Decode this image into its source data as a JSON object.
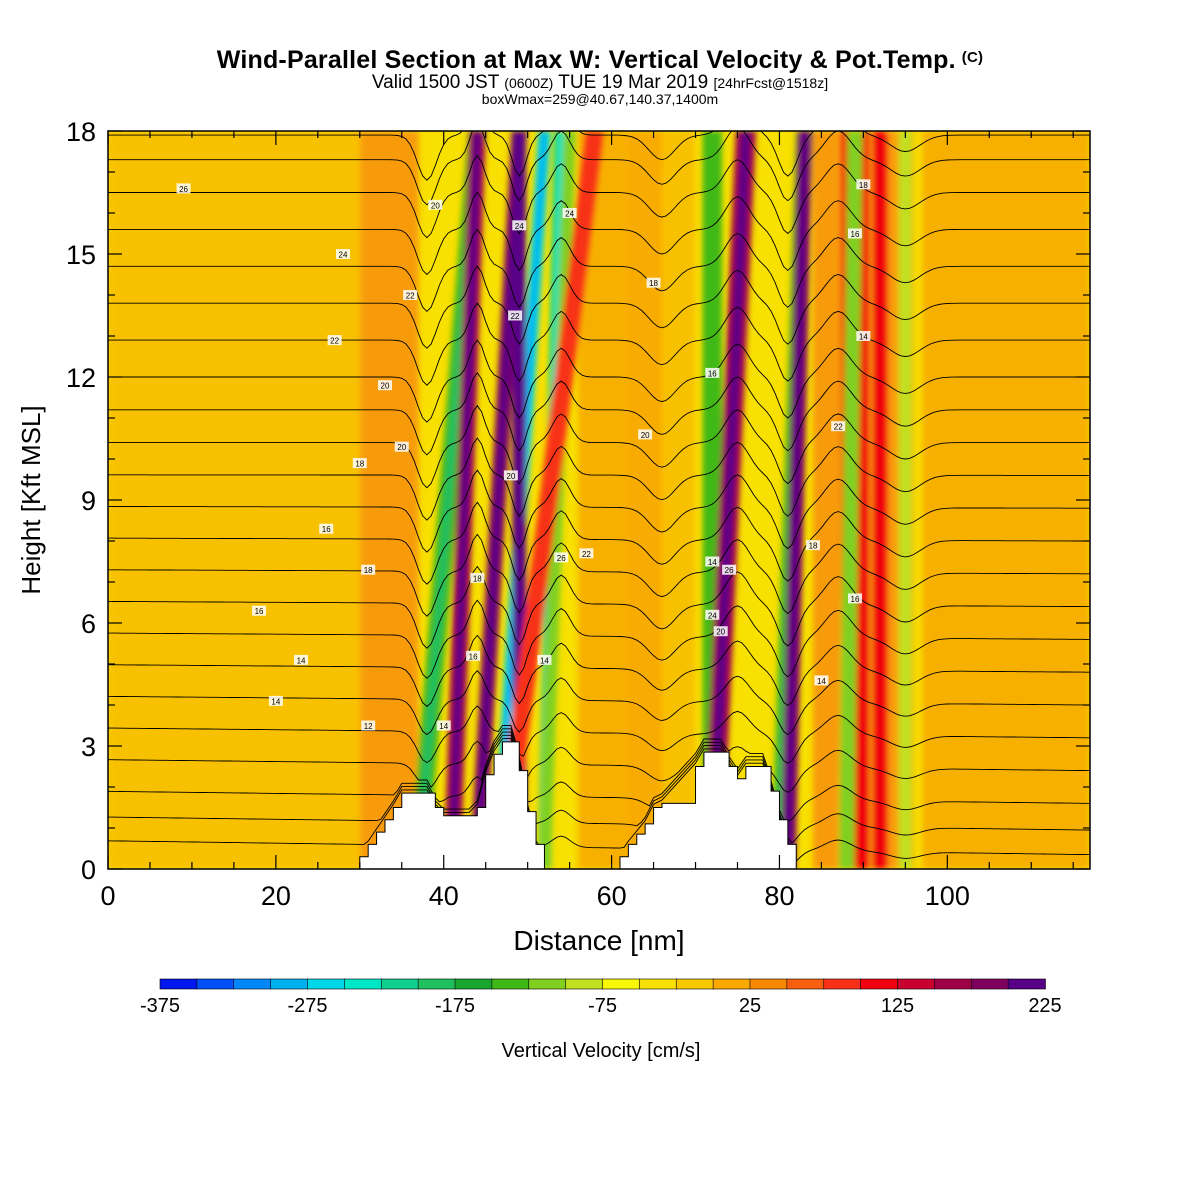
{
  "title": "Wind-Parallel Section at Max W: Vertical Velocity & Pot.Temp.",
  "copyright_mark": "(C)",
  "subtitle": {
    "valid_label": "Valid 1500 JST",
    "utc": "(0600Z)",
    "date": "TUE 19 Mar 2019",
    "forecast": "[24hrFcst@1518z]"
  },
  "subtitle2": "boxWmax=259@40.67,140.37,1400m",
  "chart_data": {
    "type": "heatmap",
    "xlabel": "Distance [nm]",
    "ylabel": "Height [Kft MSL]",
    "xlim": [
      0,
      117
    ],
    "ylim": [
      0,
      18
    ],
    "x_ticks": [
      0,
      20,
      40,
      60,
      80,
      100
    ],
    "y_ticks": [
      0,
      3,
      6,
      9,
      12,
      15,
      18
    ],
    "colorbar": {
      "label": "Vertical Velocity [cm/s]",
      "min": -375,
      "step": 25,
      "tick_labels": [
        "-375",
        "-275",
        "-175",
        "-75",
        "25",
        "125",
        "225"
      ],
      "colors": [
        "#0018f0",
        "#0050f8",
        "#0088f8",
        "#00b0f0",
        "#00d8e8",
        "#00e8c8",
        "#10d090",
        "#20c060",
        "#18a830",
        "#40b818",
        "#80d020",
        "#c0e020",
        "#f8f800",
        "#f8e000",
        "#f8c800",
        "#f8a800",
        "#f88800",
        "#f86010",
        "#f83018",
        "#f00010",
        "#c80030",
        "#a00048",
        "#800060",
        "#580088"
      ]
    },
    "terrain": {
      "x": [
        0,
        29.9,
        30,
        31,
        32,
        33,
        34,
        35,
        38,
        39,
        40,
        41,
        42,
        43,
        44,
        45,
        46,
        47,
        48,
        49,
        50,
        51,
        52,
        60,
        61,
        62,
        63,
        64,
        65,
        66,
        70,
        71,
        72,
        73,
        74,
        75,
        76,
        77,
        78,
        79,
        80,
        81,
        82,
        117
      ],
      "height": [
        0,
        0,
        0.3,
        0.6,
        0.9,
        1.2,
        1.5,
        1.85,
        1.85,
        1.5,
        1.3,
        1.3,
        1.3,
        1.3,
        1.5,
        2.3,
        2.8,
        3.1,
        3.1,
        2.4,
        1.4,
        0.6,
        0,
        0,
        0.3,
        0.6,
        0.85,
        1.1,
        1.5,
        1.6,
        2.5,
        2.85,
        2.85,
        2.85,
        2.5,
        2.2,
        2.5,
        2.5,
        2.5,
        1.9,
        1.2,
        0.6,
        0,
        0
      ]
    },
    "theta_contours": {
      "base_height_at": [
        0.35,
        0.95,
        1.6,
        2.4,
        3.2,
        4.0,
        4.8,
        5.6,
        6.4,
        7.2,
        8.0,
        8.8,
        9.6,
        10.4,
        11.2,
        12.0,
        12.9,
        13.8,
        14.7,
        15.6,
        16.5,
        17.3,
        17.9
      ]
    },
    "contour_labels": [
      "26",
      "24",
      "22",
      "20",
      "18",
      "16",
      "14",
      "12",
      "14",
      "24",
      "22",
      "20",
      "18",
      "16",
      "14",
      "24",
      "26",
      "22",
      "20",
      "18",
      "16",
      "14",
      "24",
      "26",
      "20",
      "18",
      "16",
      "14",
      "18",
      "16",
      "14",
      "22",
      "20",
      "22",
      "20",
      "18",
      "16",
      "14"
    ],
    "vertical_velocity_bands": [
      {
        "x_bottom": 37,
        "x_top": 44,
        "width": 2.2,
        "w": -150
      },
      {
        "x_bottom": 41,
        "x_top": 44,
        "width": 2.0,
        "w": 160
      },
      {
        "x_bottom": 44,
        "x_top": 49,
        "width": 1.8,
        "w": 175
      },
      {
        "x_bottom": 46.5,
        "x_top": 52,
        "width": 1.5,
        "w": -260
      },
      {
        "x_bottom": 49,
        "x_top": 49,
        "width": 1.6,
        "w": 250
      },
      {
        "x_bottom": 52,
        "x_top": 54,
        "width": 1.6,
        "w": -210
      },
      {
        "x_bottom": 52,
        "x_top": 55,
        "width": 1.5,
        "w": -110
      },
      {
        "x_bottom": 47,
        "x_top": 58,
        "width": 2.2,
        "w": 90
      },
      {
        "x_bottom": 72,
        "x_top": 72,
        "width": 2.3,
        "w": -130
      },
      {
        "x_bottom": 72,
        "x_top": 76,
        "width": 2.4,
        "w": 150
      },
      {
        "x_bottom": 80,
        "x_top": 83,
        "width": 2.0,
        "w": -150
      },
      {
        "x_bottom": 81,
        "x_top": 83,
        "width": 1.8,
        "w": 180
      },
      {
        "x_bottom": 89,
        "x_top": 89,
        "width": 3.2,
        "w": 115
      },
      {
        "x_bottom": 88,
        "x_top": 89,
        "width": 1.8,
        "w": -120
      },
      {
        "x_bottom": 92,
        "x_top": 92,
        "width": 1.6,
        "w": 105
      },
      {
        "x_bottom": 95,
        "x_top": 95,
        "width": 1.5,
        "w": -85
      }
    ]
  }
}
